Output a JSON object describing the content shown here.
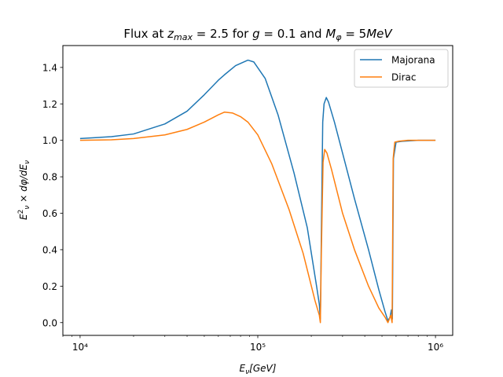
{
  "chart_data": {
    "type": "line",
    "title": "Flux at z_max = 2.5 for g = 0.1 and M_φ = 5MeV",
    "xlabel": "E_ν[GeV]",
    "ylabel": "E_ν² × dφ/dE_ν",
    "xscale": "log",
    "xlim": [
      8000,
      1250000
    ],
    "ylim": [
      -0.07,
      1.52
    ],
    "xticks": [
      10000,
      100000,
      1000000
    ],
    "xtick_labels": [
      "10⁴",
      "10⁵",
      "10⁶"
    ],
    "yticks": [
      0.0,
      0.2,
      0.4,
      0.6,
      0.8,
      1.0,
      1.2,
      1.4
    ],
    "ytick_labels": [
      "0.0",
      "0.2",
      "0.4",
      "0.6",
      "0.8",
      "1.0",
      "1.2",
      "1.4"
    ],
    "grid": false,
    "legend_position": "top-right",
    "series": [
      {
        "name": "Majorana",
        "color": "#1f77b4",
        "x": [
          10000,
          15000,
          20000,
          30000,
          40000,
          50000,
          60000,
          65000,
          75000,
          88000,
          95000,
          110000,
          130000,
          160000,
          190000,
          215000,
          222000,
          225000,
          228000,
          232000,
          236000,
          243000,
          250000,
          270000,
          300000,
          350000,
          420000,
          480000,
          520000,
          540000,
          555000,
          565000,
          572000,
          580000,
          600000,
          650000,
          800000,
          1000000
        ],
        "y": [
          1.01,
          1.02,
          1.035,
          1.09,
          1.16,
          1.25,
          1.33,
          1.36,
          1.41,
          1.44,
          1.43,
          1.34,
          1.14,
          0.82,
          0.52,
          0.19,
          0.1,
          0.02,
          0.5,
          1.1,
          1.2,
          1.235,
          1.21,
          1.1,
          0.93,
          0.68,
          0.4,
          0.18,
          0.06,
          0.01,
          0.03,
          0.07,
          0.02,
          0.9,
          0.99,
          0.995,
          1.0,
          1.0
        ]
      },
      {
        "name": "Dirac",
        "color": "#ff7f0e",
        "x": [
          10000,
          15000,
          20000,
          30000,
          40000,
          50000,
          60000,
          65000,
          72000,
          80000,
          88000,
          100000,
          120000,
          150000,
          180000,
          210000,
          222000,
          225000,
          228000,
          233000,
          238000,
          245000,
          260000,
          300000,
          350000,
          420000,
          480000,
          520000,
          540000,
          550000,
          560000,
          570000,
          578000,
          590000,
          620000,
          700000,
          1000000
        ],
        "y": [
          1.0,
          1.003,
          1.01,
          1.03,
          1.06,
          1.1,
          1.14,
          1.155,
          1.15,
          1.13,
          1.1,
          1.03,
          0.87,
          0.62,
          0.38,
          0.12,
          0.04,
          0.0,
          0.4,
          0.88,
          0.95,
          0.93,
          0.84,
          0.6,
          0.4,
          0.2,
          0.08,
          0.03,
          0.0,
          0.02,
          0.04,
          0.0,
          0.9,
          0.99,
          0.995,
          1.0,
          1.0
        ]
      }
    ]
  }
}
